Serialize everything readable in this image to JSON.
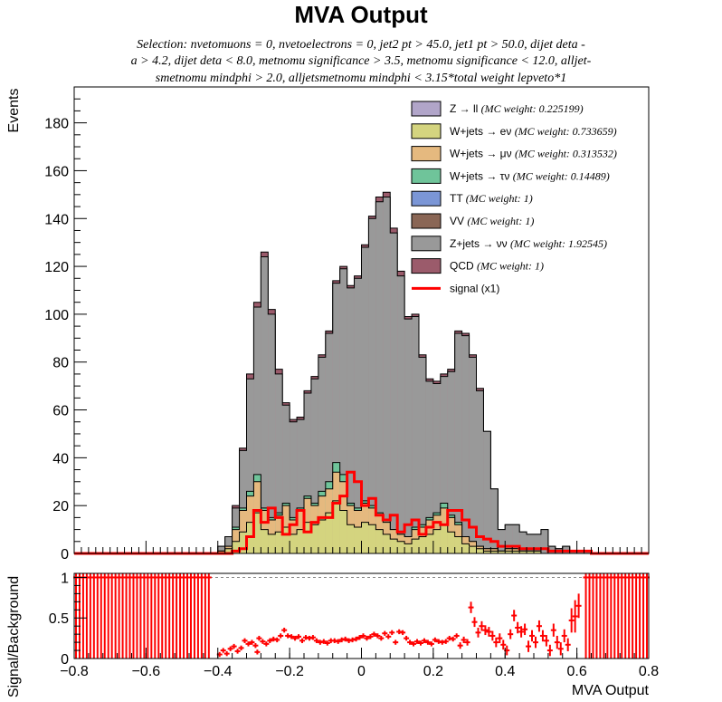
{
  "chart_data": [
    {
      "type": "bar",
      "stacked": true,
      "title": "MVA Output",
      "subtitle": [
        "Selection: nvetomuons = 0, nvetoelectrons = 0, jet2 pt > 45.0, jet1 pt > 50.0, dijet deta -",
        "a > 4.2, dijet deta < 8.0, metnomu significance > 3.5, metnomu significance < 12.0, alljet-",
        "smetnomu mindphi > 2.0, alljetsmetnomu mindphi < 3.15*total weight lepveto*1"
      ],
      "ylabel": "Events",
      "xlim": [
        -0.8,
        0.8
      ],
      "ylim": [
        0,
        195
      ],
      "yticks": [
        0,
        20,
        40,
        60,
        80,
        100,
        120,
        140,
        160,
        180
      ],
      "legend_position": "top-right",
      "bins": {
        "start": -0.8,
        "width": 0.02,
        "count": 80
      },
      "series": [
        {
          "name": "W+jets → eν",
          "weight": "(MC weight: 0.733659)",
          "color": "#d4d47f",
          "values": [
            0,
            0,
            0,
            0,
            0,
            0,
            0,
            0,
            0,
            0,
            0,
            0,
            0,
            0,
            0,
            0,
            0,
            0,
            0,
            0,
            1,
            2,
            5,
            9,
            13,
            17,
            10,
            8,
            9,
            11,
            8,
            10,
            13,
            12,
            14,
            17,
            22,
            18,
            12,
            11,
            13,
            12,
            10,
            8,
            6,
            5,
            4,
            6,
            7,
            8,
            10,
            12,
            9,
            7,
            4,
            3,
            2,
            1,
            1,
            1,
            1,
            1,
            1,
            1,
            1,
            0,
            0,
            0,
            0,
            0,
            0,
            0,
            0,
            0,
            0,
            0,
            0,
            0,
            0,
            0
          ]
        },
        {
          "name": "W+jets → μν",
          "weight": "(MC weight: 0.313532)",
          "color": "#e5b97f",
          "values": [
            0,
            0,
            0,
            0,
            0,
            0,
            0,
            0,
            0,
            0,
            0,
            0,
            0,
            0,
            0,
            0,
            0,
            0,
            0,
            0,
            0,
            1,
            5,
            9,
            11,
            13,
            8,
            6,
            7,
            9,
            6,
            8,
            10,
            8,
            10,
            10,
            12,
            12,
            8,
            7,
            8,
            7,
            6,
            5,
            4,
            3,
            3,
            4,
            4,
            6,
            6,
            7,
            6,
            5,
            3,
            2,
            1,
            1,
            1,
            0,
            1,
            1,
            0,
            0,
            0,
            0,
            0,
            0,
            0,
            0,
            0,
            0,
            0,
            0,
            0,
            0,
            0,
            0,
            0,
            0
          ]
        },
        {
          "name": "W+jets → τν",
          "weight": "(MC weight: 0.14489)",
          "color": "#6fc49a",
          "values": [
            0,
            0,
            0,
            0,
            0,
            0,
            0,
            0,
            0,
            0,
            0,
            0,
            0,
            0,
            0,
            0,
            0,
            0,
            0,
            0,
            0,
            0,
            1,
            1,
            2,
            3,
            1,
            1,
            1,
            1,
            1,
            1,
            1,
            1,
            2,
            3,
            4,
            3,
            1,
            1,
            1,
            1,
            1,
            1,
            0,
            0,
            0,
            1,
            1,
            1,
            1,
            2,
            1,
            1,
            0,
            0,
            0,
            0,
            0,
            0,
            0,
            0,
            0,
            0,
            0,
            0,
            0,
            0,
            0,
            0,
            0,
            0,
            0,
            0,
            0,
            0,
            0,
            0,
            0,
            0
          ]
        },
        {
          "name": "Z+jets → νν",
          "weight": "(MC weight: 1.92545)",
          "color": "#999999",
          "values": [
            0,
            0,
            0,
            0,
            0,
            0,
            0,
            0,
            0,
            0,
            0,
            0,
            0,
            0,
            0,
            0,
            0,
            0,
            0,
            0,
            2,
            4,
            8,
            24,
            47,
            70,
            105,
            85,
            58,
            41,
            40,
            37,
            43,
            52,
            56,
            62,
            75,
            86,
            90,
            96,
            106,
            120,
            130,
            135,
            124,
            108,
            91,
            88,
            70,
            57,
            54,
            53,
            60,
            79,
            84,
            77,
            65,
            49,
            25,
            9,
            10,
            10,
            8,
            7,
            7,
            10,
            3,
            2,
            3,
            1,
            1,
            1,
            0,
            0,
            0,
            0,
            0,
            0,
            0,
            0
          ]
        },
        {
          "name": "QCD",
          "weight": "(MC weight: 1)",
          "color": "#9b5b6b",
          "values": [
            0,
            0,
            0,
            0,
            0,
            0,
            0,
            0,
            0,
            0,
            0,
            0,
            0,
            0,
            0,
            0,
            0,
            0,
            0,
            0,
            0,
            0,
            1,
            1,
            2,
            2,
            2,
            2,
            2,
            1,
            1,
            1,
            1,
            1,
            1,
            1,
            1,
            1,
            1,
            1,
            1,
            1,
            2,
            2,
            2,
            2,
            1,
            1,
            1,
            1,
            1,
            1,
            1,
            1,
            1,
            1,
            1,
            0,
            0,
            0,
            0,
            0,
            0,
            0,
            0,
            0,
            0,
            0,
            0,
            0,
            0,
            0,
            0,
            0,
            0,
            0,
            0,
            0,
            0,
            0
          ]
        },
        {
          "name": "signal (x1)",
          "color": "#ff0000",
          "line": true,
          "values": [
            0,
            0,
            0,
            0,
            0,
            0,
            0,
            0,
            0,
            0,
            0,
            0,
            0,
            0,
            0,
            0,
            0,
            0,
            0,
            0,
            0,
            0,
            1,
            2,
            7,
            18,
            13,
            19,
            15,
            8,
            12,
            18,
            9,
            13,
            15,
            15,
            21,
            24,
            34,
            30,
            20,
            23,
            16,
            14,
            16,
            9,
            12,
            14,
            8,
            11,
            13,
            12,
            18,
            18,
            14,
            11,
            7,
            6,
            5,
            3,
            3,
            3,
            2,
            2,
            2,
            2,
            1,
            1,
            1,
            1,
            1,
            1,
            0,
            0,
            0,
            0,
            0,
            0,
            0,
            0
          ]
        }
      ],
      "legend": [
        {
          "name": "Z → ll",
          "weight": "(MC weight: 0.225199)",
          "color": "#b1a5c9"
        },
        {
          "name": "W+jets → eν",
          "weight": "(MC weight: 0.733659)",
          "color": "#d4d47f"
        },
        {
          "name": "W+jets → μν",
          "weight": "(MC weight: 0.313532)",
          "color": "#e5b97f"
        },
        {
          "name": "W+jets → τν",
          "weight": "(MC weight: 0.14489)",
          "color": "#6fc49a"
        },
        {
          "name": "TT",
          "weight": "(MC weight: 1)",
          "color": "#7b96d6"
        },
        {
          "name": "VV",
          "weight": "(MC weight: 1)",
          "color": "#8a6655"
        },
        {
          "name": "Z+jets → νν",
          "weight": "(MC weight: 1.92545)",
          "color": "#999999"
        },
        {
          "name": "QCD",
          "weight": "(MC weight: 1)",
          "color": "#9b5b6b"
        },
        {
          "name": "signal (x1)",
          "weight": "",
          "color": "#ff0000",
          "line": true
        }
      ]
    },
    {
      "type": "scatter",
      "error_bars": true,
      "xlabel": "MVA Output",
      "ylabel": "Signal/Background",
      "xlim": [
        -0.8,
        0.8
      ],
      "ylim": [
        0,
        1.05
      ],
      "yticks": [
        0,
        0.5,
        1
      ],
      "xticks": [
        -0.8,
        -0.6,
        -0.4,
        -0.2,
        0,
        0.2,
        0.4,
        0.6,
        0.8
      ],
      "reference_line": 1,
      "bins": {
        "start": -0.8,
        "width": 0.01,
        "count": 160
      },
      "points": [
        {
          "x": -0.29,
          "y": 0.08,
          "err": 0.03
        },
        {
          "x": -0.395,
          "y": 0.05,
          "err": 0.03
        },
        {
          "x": -0.385,
          "y": 0.1,
          "err": 0.03
        },
        {
          "x": -0.375,
          "y": 0.06,
          "err": 0.03
        },
        {
          "x": -0.365,
          "y": 0.12,
          "err": 0.03
        },
        {
          "x": -0.355,
          "y": 0.15,
          "err": 0.03
        },
        {
          "x": -0.345,
          "y": 0.09,
          "err": 0.03
        },
        {
          "x": -0.335,
          "y": 0.13,
          "err": 0.03
        },
        {
          "x": -0.325,
          "y": 0.22,
          "err": 0.03
        },
        {
          "x": -0.315,
          "y": 0.18,
          "err": 0.03
        },
        {
          "x": -0.305,
          "y": 0.2,
          "err": 0.03
        },
        {
          "x": -0.295,
          "y": 0.16,
          "err": 0.03
        },
        {
          "x": -0.285,
          "y": 0.25,
          "err": 0.03
        },
        {
          "x": -0.275,
          "y": 0.21,
          "err": 0.03
        },
        {
          "x": -0.265,
          "y": 0.18,
          "err": 0.03
        },
        {
          "x": -0.255,
          "y": 0.22,
          "err": 0.03
        },
        {
          "x": -0.245,
          "y": 0.24,
          "err": 0.03
        },
        {
          "x": -0.235,
          "y": 0.23,
          "err": 0.03
        },
        {
          "x": -0.225,
          "y": 0.28,
          "err": 0.03
        },
        {
          "x": -0.215,
          "y": 0.35,
          "err": 0.03
        },
        {
          "x": -0.205,
          "y": 0.28,
          "err": 0.03
        },
        {
          "x": -0.195,
          "y": 0.27,
          "err": 0.03
        },
        {
          "x": -0.185,
          "y": 0.25,
          "err": 0.03
        },
        {
          "x": -0.175,
          "y": 0.27,
          "err": 0.03
        },
        {
          "x": -0.165,
          "y": 0.22,
          "err": 0.03
        },
        {
          "x": -0.155,
          "y": 0.26,
          "err": 0.03
        },
        {
          "x": -0.145,
          "y": 0.25,
          "err": 0.03
        },
        {
          "x": -0.135,
          "y": 0.26,
          "err": 0.03
        },
        {
          "x": -0.125,
          "y": 0.22,
          "err": 0.03
        },
        {
          "x": -0.115,
          "y": 0.2,
          "err": 0.03
        },
        {
          "x": -0.105,
          "y": 0.21,
          "err": 0.03
        },
        {
          "x": -0.095,
          "y": 0.19,
          "err": 0.03
        },
        {
          "x": -0.085,
          "y": 0.22,
          "err": 0.03
        },
        {
          "x": -0.075,
          "y": 0.22,
          "err": 0.03
        },
        {
          "x": -0.065,
          "y": 0.21,
          "err": 0.03
        },
        {
          "x": -0.055,
          "y": 0.23,
          "err": 0.03
        },
        {
          "x": -0.045,
          "y": 0.24,
          "err": 0.03
        },
        {
          "x": -0.035,
          "y": 0.22,
          "err": 0.03
        },
        {
          "x": -0.025,
          "y": 0.23,
          "err": 0.03
        },
        {
          "x": -0.015,
          "y": 0.24,
          "err": 0.03
        },
        {
          "x": -0.005,
          "y": 0.26,
          "err": 0.03
        },
        {
          "x": 0.005,
          "y": 0.28,
          "err": 0.03
        },
        {
          "x": 0.015,
          "y": 0.25,
          "err": 0.03
        },
        {
          "x": 0.025,
          "y": 0.27,
          "err": 0.03
        },
        {
          "x": 0.035,
          "y": 0.3,
          "err": 0.03
        },
        {
          "x": 0.045,
          "y": 0.28,
          "err": 0.03
        },
        {
          "x": 0.055,
          "y": 0.25,
          "err": 0.03
        },
        {
          "x": 0.065,
          "y": 0.31,
          "err": 0.03
        },
        {
          "x": 0.075,
          "y": 0.27,
          "err": 0.03
        },
        {
          "x": 0.085,
          "y": 0.32,
          "err": 0.03
        },
        {
          "x": 0.095,
          "y": 0.2,
          "err": 0.03
        },
        {
          "x": 0.105,
          "y": 0.33,
          "err": 0.03
        },
        {
          "x": 0.115,
          "y": 0.32,
          "err": 0.03
        },
        {
          "x": 0.125,
          "y": 0.25,
          "err": 0.03
        },
        {
          "x": 0.135,
          "y": 0.2,
          "err": 0.03
        },
        {
          "x": 0.145,
          "y": 0.18,
          "err": 0.03
        },
        {
          "x": 0.155,
          "y": 0.21,
          "err": 0.03
        },
        {
          "x": 0.165,
          "y": 0.19,
          "err": 0.03
        },
        {
          "x": 0.175,
          "y": 0.22,
          "err": 0.03
        },
        {
          "x": 0.185,
          "y": 0.2,
          "err": 0.03
        },
        {
          "x": 0.195,
          "y": 0.18,
          "err": 0.03
        },
        {
          "x": 0.205,
          "y": 0.23,
          "err": 0.03
        },
        {
          "x": 0.215,
          "y": 0.21,
          "err": 0.03
        },
        {
          "x": 0.225,
          "y": 0.2,
          "err": 0.03
        },
        {
          "x": 0.235,
          "y": 0.21,
          "err": 0.03
        },
        {
          "x": 0.245,
          "y": 0.25,
          "err": 0.03
        },
        {
          "x": 0.255,
          "y": 0.24,
          "err": 0.03
        },
        {
          "x": 0.265,
          "y": 0.28,
          "err": 0.03
        },
        {
          "x": 0.275,
          "y": 0.16,
          "err": 0.04
        },
        {
          "x": 0.285,
          "y": 0.23,
          "err": 0.04
        },
        {
          "x": 0.295,
          "y": 0.2,
          "err": 0.04
        },
        {
          "x": 0.305,
          "y": 0.63,
          "err": 0.07
        },
        {
          "x": 0.315,
          "y": 0.45,
          "err": 0.06
        },
        {
          "x": 0.325,
          "y": 0.32,
          "err": 0.06
        },
        {
          "x": 0.335,
          "y": 0.4,
          "err": 0.06
        },
        {
          "x": 0.345,
          "y": 0.35,
          "err": 0.06
        },
        {
          "x": 0.355,
          "y": 0.33,
          "err": 0.06
        },
        {
          "x": 0.365,
          "y": 0.28,
          "err": 0.06
        },
        {
          "x": 0.375,
          "y": 0.2,
          "err": 0.06
        },
        {
          "x": 0.385,
          "y": 0.25,
          "err": 0.06
        },
        {
          "x": 0.395,
          "y": 0.17,
          "err": 0.06
        },
        {
          "x": 0.405,
          "y": 0.1,
          "err": 0.06
        },
        {
          "x": 0.415,
          "y": 0.3,
          "err": 0.06
        },
        {
          "x": 0.425,
          "y": 0.53,
          "err": 0.07
        },
        {
          "x": 0.435,
          "y": 0.38,
          "err": 0.07
        },
        {
          "x": 0.445,
          "y": 0.33,
          "err": 0.07
        },
        {
          "x": 0.455,
          "y": 0.36,
          "err": 0.07
        },
        {
          "x": 0.465,
          "y": 0.15,
          "err": 0.07
        },
        {
          "x": 0.475,
          "y": 0.28,
          "err": 0.07
        },
        {
          "x": 0.485,
          "y": 0.2,
          "err": 0.07
        },
        {
          "x": 0.495,
          "y": 0.4,
          "err": 0.07
        },
        {
          "x": 0.505,
          "y": 0.28,
          "err": 0.07
        },
        {
          "x": 0.515,
          "y": 0.22,
          "err": 0.07
        },
        {
          "x": 0.525,
          "y": 0.1,
          "err": 0.07
        },
        {
          "x": 0.535,
          "y": 0.35,
          "err": 0.08
        },
        {
          "x": 0.545,
          "y": 0.2,
          "err": 0.08
        },
        {
          "x": 0.555,
          "y": 0.12,
          "err": 0.08
        },
        {
          "x": 0.565,
          "y": 0.28,
          "err": 0.08
        },
        {
          "x": 0.575,
          "y": 0.17,
          "err": 0.08
        },
        {
          "x": 0.585,
          "y": 0.47,
          "err": 0.15
        },
        {
          "x": 0.595,
          "y": 0.52,
          "err": 0.2
        },
        {
          "x": 0.605,
          "y": 0.65,
          "err": 0.15
        }
      ],
      "saturated_regions": [
        [
          -0.8,
          -0.42
        ],
        [
          0.62,
          0.8
        ]
      ]
    }
  ]
}
